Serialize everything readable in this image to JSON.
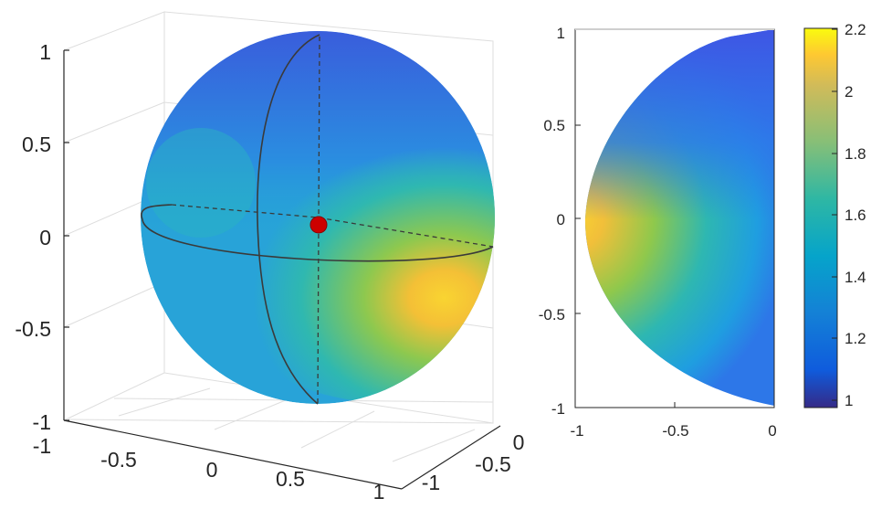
{
  "chart_data": [
    {
      "type": "surface3d",
      "title": "",
      "xlabel": "",
      "ylabel": "",
      "zlabel": "",
      "xlim": [
        -1,
        1
      ],
      "ylim": [
        -1,
        1
      ],
      "zlim": [
        -1,
        1
      ],
      "x_ticks": [
        "-1",
        "-0.5",
        "0",
        "0.5",
        "1"
      ],
      "y_ticks": [
        "-1",
        "-0.5",
        "0"
      ],
      "z_ticks": [
        "-1",
        "-0.5",
        "0",
        "0.5",
        "1"
      ],
      "grid": true,
      "marker": {
        "x": 0,
        "y": 0,
        "z": 0.05,
        "color": "#cc0000"
      },
      "colormap": "parula",
      "hot_spot": {
        "x": 0.68,
        "y": 0,
        "z": -0.15,
        "value": 2.2
      },
      "cold_spot": {
        "x": 0.3,
        "y": 0,
        "z": -0.9,
        "value": 1.0
      }
    },
    {
      "type": "heatmap",
      "title": "",
      "xlabel": "",
      "ylabel": "",
      "xlim": [
        -1,
        0
      ],
      "ylim": [
        -1,
        1
      ],
      "x_ticks": [
        "-1",
        "-0.5",
        "0"
      ],
      "y_ticks": [
        "1",
        "0.5",
        "0",
        "-0.5",
        "-1"
      ],
      "hot_spot": {
        "x": -0.68,
        "y": 0.0,
        "value": 2.2
      },
      "cold_spot": {
        "x": -0.45,
        "y": -0.78,
        "value": 1.0
      },
      "colorbar": {
        "range": [
          0.97,
          2.2
        ],
        "ticks": [
          "2.2",
          "2",
          "1.8",
          "1.6",
          "1.4",
          "1.2",
          "1"
        ],
        "colormap": "parula"
      }
    }
  ]
}
